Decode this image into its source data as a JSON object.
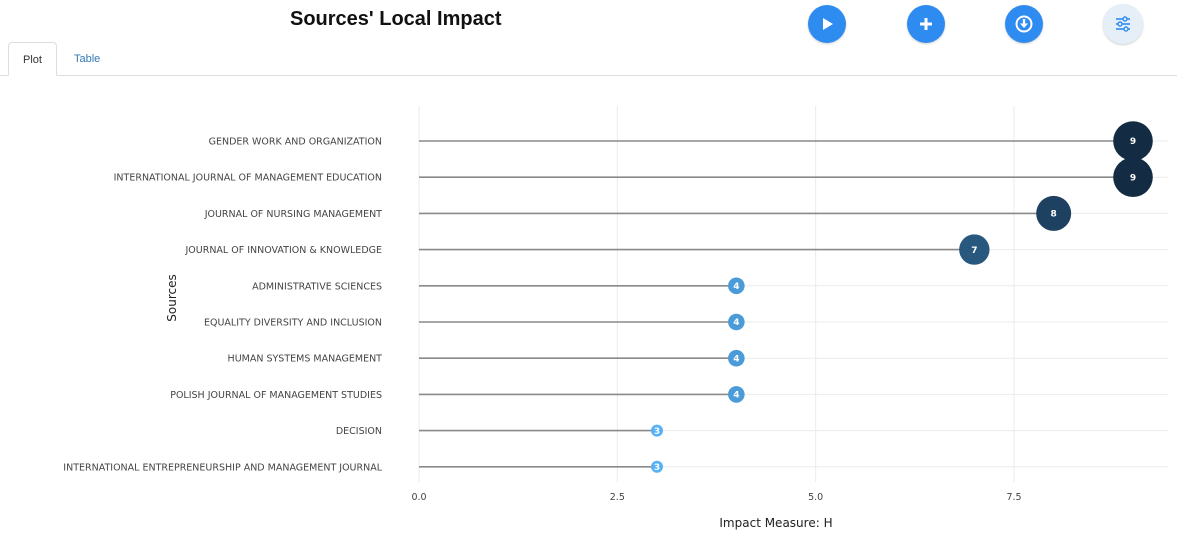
{
  "header": {
    "title": "Sources' Local Impact"
  },
  "toolbar": {
    "buttons": [
      {
        "name": "play-button",
        "icon": "play-icon"
      },
      {
        "name": "add-button",
        "icon": "plus-icon"
      },
      {
        "name": "download-button",
        "icon": "download-icon"
      },
      {
        "name": "options-button",
        "icon": "sliders-icon"
      }
    ],
    "accent": "#2e8bf0"
  },
  "tabs": [
    {
      "label": "Plot",
      "active": true
    },
    {
      "label": "Table",
      "active": false
    }
  ],
  "chart_data": {
    "type": "lollipop",
    "title": "",
    "xlabel": "Impact Measure: H",
    "ylabel": "Sources",
    "xlim": [
      0,
      9
    ],
    "xticks": [
      0.0,
      2.5,
      5.0,
      7.5
    ],
    "xtick_labels": [
      "0.0",
      "2.5",
      "5.0",
      "7.5"
    ],
    "grid": true,
    "categories": [
      "GENDER WORK AND ORGANIZATION",
      "INTERNATIONAL JOURNAL OF MANAGEMENT EDUCATION",
      "JOURNAL OF NURSING MANAGEMENT",
      "JOURNAL OF INNOVATION & KNOWLEDGE",
      "ADMINISTRATIVE SCIENCES",
      "EQUALITY DIVERSITY AND INCLUSION",
      "HUMAN SYSTEMS MANAGEMENT",
      "POLISH JOURNAL OF MANAGEMENT STUDIES",
      "DECISION",
      "INTERNATIONAL ENTREPRENEURSHIP AND MANAGEMENT JOURNAL"
    ],
    "values": [
      9,
      9,
      8,
      7,
      4,
      4,
      4,
      4,
      3,
      3
    ],
    "color_scale": {
      "low": "#56b1f7",
      "high": "#132b43"
    }
  }
}
